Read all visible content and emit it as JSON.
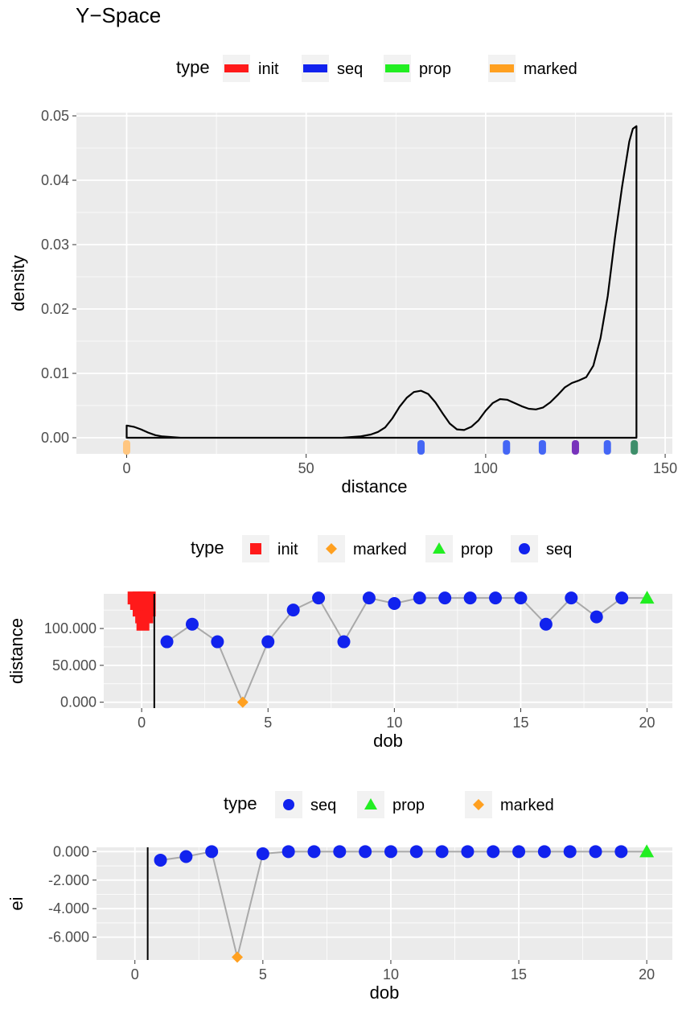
{
  "title": "Y−Space",
  "colors": {
    "init": "#FF1A1A",
    "seq": "#1122EE",
    "prop": "#22EE22",
    "marked": "#FFA020",
    "panel": "#EBEBEB",
    "grid": "#FFFFFF",
    "line": "#A9A9A9",
    "density": "#000000"
  },
  "chart_data": [
    {
      "type": "area",
      "legend": {
        "title": "type",
        "position": "top",
        "items": [
          {
            "label": "init",
            "key": "init"
          },
          {
            "label": "seq",
            "key": "seq"
          },
          {
            "label": "prop",
            "key": "prop"
          },
          {
            "label": "marked",
            "key": "marked"
          }
        ]
      },
      "xlabel": "distance",
      "ylabel": "density",
      "xlim": [
        -14,
        152
      ],
      "ylim": [
        -0.0025,
        0.0505
      ],
      "xticks": [
        0,
        50,
        100,
        150
      ],
      "xtick_labels": [
        "0",
        "50",
        "100",
        "150"
      ],
      "yticks": [
        0,
        0.01,
        0.02,
        0.03,
        0.04,
        0.05
      ],
      "ytick_labels": [
        "0.00",
        "0.01",
        "0.02",
        "0.03",
        "0.04",
        "0.05"
      ],
      "grid": true,
      "density_curve": {
        "x": [
          0,
          2,
          4,
          6,
          8,
          10,
          15,
          20,
          30,
          40,
          50,
          60,
          65,
          68,
          70,
          72,
          74,
          76,
          78,
          80,
          82,
          84,
          86,
          88,
          90,
          92,
          94,
          96,
          98,
          100,
          102,
          104,
          106,
          108,
          110,
          112,
          114,
          116,
          118,
          120,
          122,
          124,
          126,
          128,
          130,
          132,
          134,
          136,
          138,
          140,
          141,
          142
        ],
        "y": [
          0.0019,
          0.0017,
          0.0013,
          0.0008,
          0.0004,
          0.0002,
          0.0,
          0.0,
          0.0,
          0.0,
          0.0,
          0.0,
          0.0002,
          0.0005,
          0.0009,
          0.0016,
          0.003,
          0.0048,
          0.0062,
          0.0071,
          0.0073,
          0.0068,
          0.0055,
          0.0038,
          0.0022,
          0.0013,
          0.0012,
          0.0017,
          0.0027,
          0.0042,
          0.0054,
          0.006,
          0.0059,
          0.0054,
          0.0049,
          0.0045,
          0.0044,
          0.0047,
          0.0055,
          0.0066,
          0.0078,
          0.0085,
          0.0089,
          0.0094,
          0.0112,
          0.0155,
          0.022,
          0.031,
          0.039,
          0.046,
          0.048,
          0.0484
        ]
      },
      "rug": [
        {
          "x": 0,
          "type": "marked"
        },
        {
          "x": 82,
          "type": "seq"
        },
        {
          "x": 105.8,
          "type": "seq"
        },
        {
          "x": 115.8,
          "type": "seq"
        },
        {
          "x": 125,
          "type": "seq-init"
        },
        {
          "x": 133.9,
          "type": "seq"
        },
        {
          "x": 141.4,
          "type": "seq-prop"
        }
      ]
    },
    {
      "type": "scatter",
      "legend": {
        "title": "type",
        "position": "top",
        "items": [
          {
            "label": "init",
            "key": "init",
            "shape": "square"
          },
          {
            "label": "marked",
            "key": "marked",
            "shape": "diamond"
          },
          {
            "label": "prop",
            "key": "prop",
            "shape": "triangle"
          },
          {
            "label": "seq",
            "key": "seq",
            "shape": "circle"
          }
        ]
      },
      "xlabel": "dob",
      "ylabel": "distance",
      "xlim": [
        -1.5,
        21
      ],
      "ylim": [
        -8,
        147
      ],
      "xticks": [
        0,
        5,
        10,
        15,
        20
      ],
      "xtick_labels": [
        "0",
        "5",
        "10",
        "15",
        "20"
      ],
      "yticks": [
        0,
        50,
        100
      ],
      "ytick_labels": [
        "0.000",
        "50.000",
        "100.000"
      ],
      "vline": 0.5,
      "grid": true,
      "init_points": [
        {
          "x": -0.3,
          "y": 141.4
        },
        {
          "x": -0.1,
          "y": 141.4
        },
        {
          "x": 0.1,
          "y": 141.4
        },
        {
          "x": 0.3,
          "y": 141.4
        },
        {
          "x": -0.2,
          "y": 133.9
        },
        {
          "x": 0.0,
          "y": 133.9
        },
        {
          "x": 0.2,
          "y": 133.9
        },
        {
          "x": -0.1,
          "y": 125
        },
        {
          "x": 0.1,
          "y": 125
        },
        {
          "x": 0.3,
          "y": 125
        },
        {
          "x": 0.0,
          "y": 115.8
        },
        {
          "x": 0.2,
          "y": 115.8
        },
        {
          "x": 0.05,
          "y": 105.8
        }
      ],
      "series": [
        {
          "name": "path",
          "x": [
            1,
            2,
            3,
            4,
            5,
            6,
            7,
            8,
            9,
            10,
            11,
            12,
            13,
            14,
            15,
            16,
            17,
            18,
            19,
            20
          ],
          "y": [
            82,
            105.8,
            82,
            0,
            82,
            125,
            141.4,
            82,
            141.4,
            133.9,
            141.4,
            141.4,
            141.4,
            141.4,
            141.4,
            105.8,
            141.4,
            115.8,
            141.4,
            141.4
          ],
          "types": [
            "seq",
            "seq",
            "seq",
            "marked",
            "seq",
            "seq",
            "seq",
            "seq",
            "seq",
            "seq",
            "seq",
            "seq",
            "seq",
            "seq",
            "seq",
            "seq",
            "seq",
            "seq",
            "seq",
            "prop"
          ]
        }
      ]
    },
    {
      "type": "scatter",
      "legend": {
        "title": "type",
        "position": "top",
        "items": [
          {
            "label": "seq",
            "key": "seq",
            "shape": "circle"
          },
          {
            "label": "prop",
            "key": "prop",
            "shape": "triangle"
          },
          {
            "label": "marked",
            "key": "marked",
            "shape": "diamond"
          }
        ]
      },
      "xlabel": "dob",
      "ylabel": "ei",
      "xlim": [
        -1.5,
        21
      ],
      "ylim": [
        -7.6,
        0.3
      ],
      "xticks": [
        0,
        5,
        10,
        15,
        20
      ],
      "xtick_labels": [
        "0",
        "5",
        "10",
        "15",
        "20"
      ],
      "yticks": [
        0,
        -2,
        -4,
        -6
      ],
      "ytick_labels": [
        "0.000",
        "-2.000",
        "-4.000",
        "-6.000"
      ],
      "vline": 0.5,
      "grid": true,
      "series": [
        {
          "name": "path",
          "x": [
            1,
            2,
            3,
            4,
            5,
            6,
            7,
            8,
            9,
            10,
            11,
            12,
            13,
            14,
            15,
            16,
            17,
            18,
            19,
            20
          ],
          "y": [
            -0.6,
            -0.35,
            0,
            -7.4,
            -0.15,
            0,
            0,
            0,
            0,
            0,
            0,
            0,
            0,
            0,
            0,
            0,
            0,
            0,
            0,
            0
          ],
          "types": [
            "seq",
            "seq",
            "seq",
            "marked",
            "seq",
            "seq",
            "seq",
            "seq",
            "seq",
            "seq",
            "seq",
            "seq",
            "seq",
            "seq",
            "seq",
            "seq",
            "seq",
            "seq",
            "seq",
            "prop"
          ]
        }
      ]
    }
  ]
}
